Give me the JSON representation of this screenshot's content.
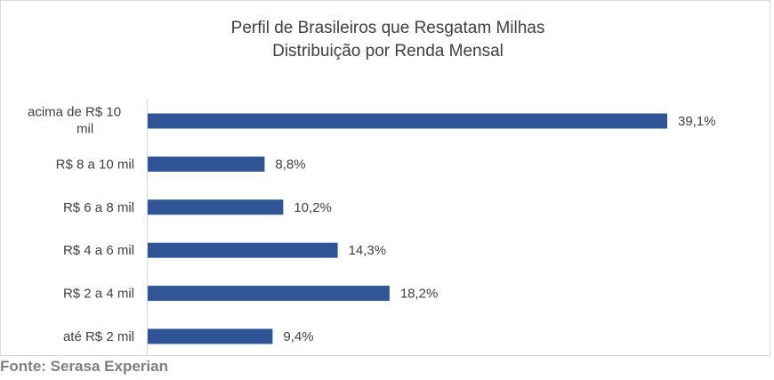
{
  "source_note": "Fonte: Serasa Experian",
  "colors": {
    "bar": "#2f5597",
    "text": "#404040",
    "axis": "#d9d9d9",
    "source": "#7f7f7f"
  },
  "chart_data": {
    "type": "bar",
    "orientation": "horizontal",
    "title": "Perfil de Brasileiros que Resgatam Milhas",
    "subtitle": "Distribuição por Renda Mensal",
    "categories": [
      "acima de R$ 10 mil",
      "R$ 8 a 10 mil",
      "R$ 6 a 8 mil",
      "R$ 4 a 6 mil",
      "R$ 2 a 4 mil",
      "até R$ 2 mil"
    ],
    "category_label_lines": [
      [
        "acima de R$ 10",
        "mil"
      ],
      [
        "R$ 8 a 10 mil"
      ],
      [
        "R$ 6 a 8 mil"
      ],
      [
        "R$ 4 a 6 mil"
      ],
      [
        "R$ 2 a 4 mil"
      ],
      [
        "até R$ 2 mil"
      ]
    ],
    "values": [
      39.1,
      8.8,
      10.2,
      14.3,
      18.2,
      9.4
    ],
    "data_labels": [
      "39,1%",
      "8,8%",
      "10,2%",
      "14,3%",
      "18,2%",
      "9,4%"
    ],
    "unit": "%",
    "xlim": [
      0,
      39.1
    ],
    "grid": false,
    "legend": "none"
  }
}
